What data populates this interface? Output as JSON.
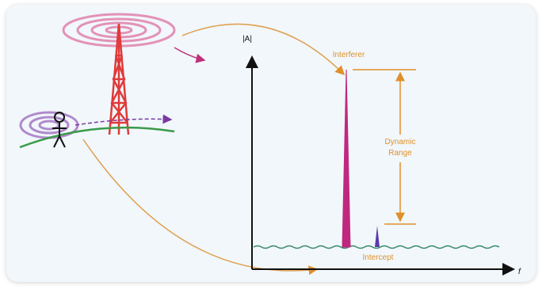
{
  "axes": {
    "y_label": "|A|",
    "x_label": "f"
  },
  "annotations": {
    "interferer": "Interferer",
    "dynamic_range": [
      "Dynamic",
      "Range"
    ],
    "intercept": "Intercept"
  }
}
